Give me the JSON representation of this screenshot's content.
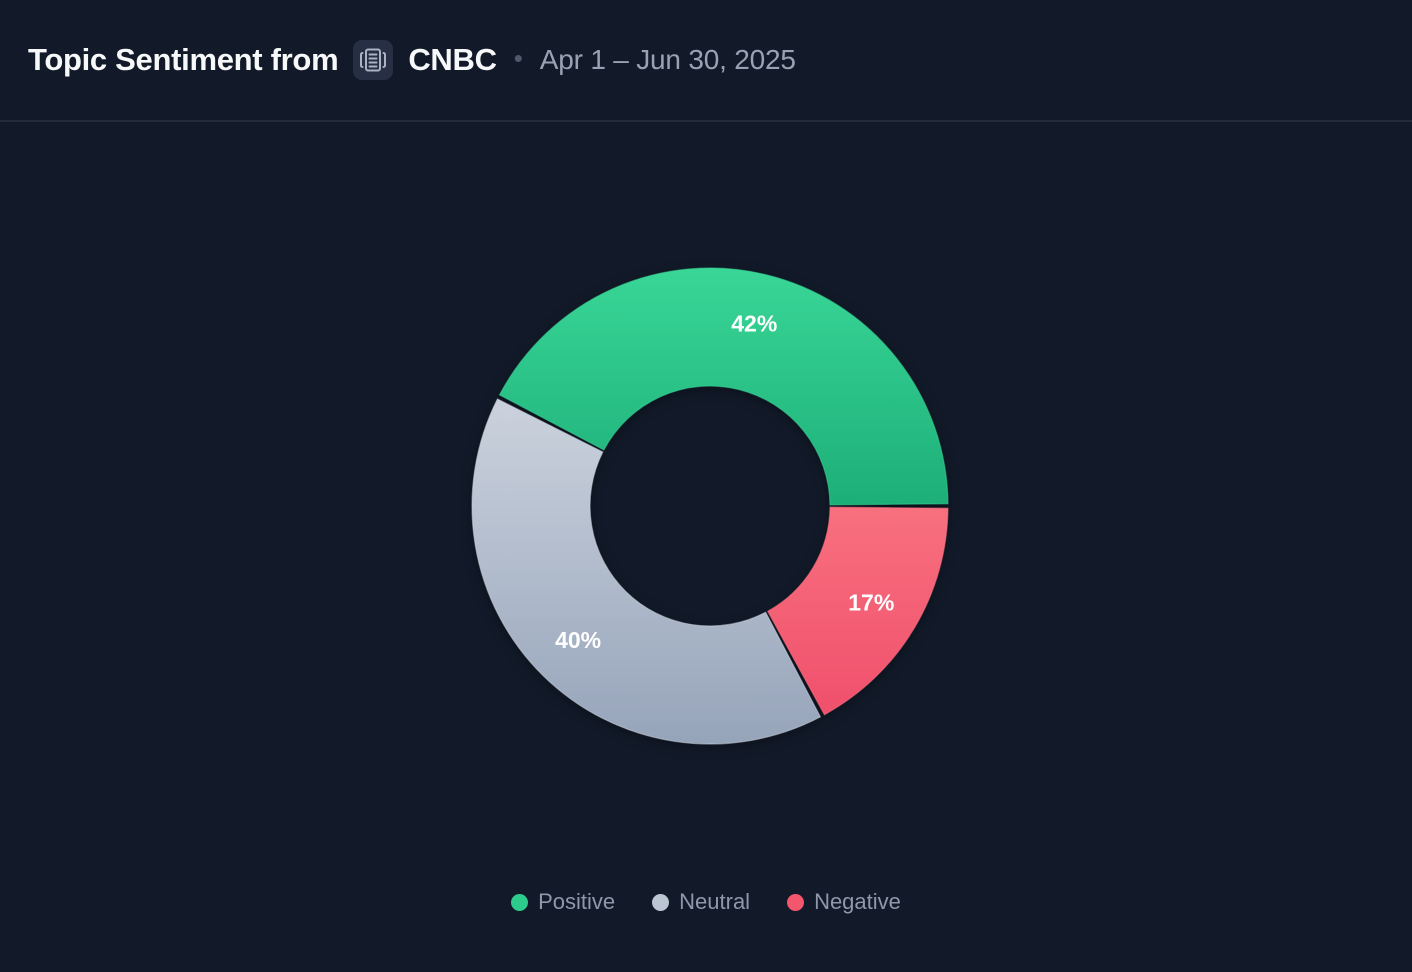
{
  "header": {
    "title": "Topic Sentiment from",
    "source": "CNBC",
    "separator": "•",
    "date_range": "Apr 1 – Jun 30, 2025",
    "icon": "newspaper-icon"
  },
  "colors": {
    "background": "#121a29",
    "divider": "#222b3a",
    "title_text": "#f7f8fa",
    "muted_text": "#99a2b2",
    "legend_text": "#8e98aa",
    "positive": "#2ecc8c",
    "neutral": "#bcc5d2",
    "negative": "#f4566d",
    "slice_label": "#ffffff"
  },
  "chart_data": {
    "type": "donut",
    "categories": [
      "Positive",
      "Neutral",
      "Negative"
    ],
    "values": [
      42,
      40,
      17
    ],
    "unit": "%",
    "series": [
      {
        "name": "Positive",
        "value": 42,
        "label": "42%",
        "color": "#2ecc8c",
        "gradient": [
          "#39d697",
          "#1daf78"
        ]
      },
      {
        "name": "Neutral",
        "value": 40,
        "label": "40%",
        "color": "#bcc5d2",
        "gradient": [
          "#cbd2dd",
          "#96a4ba"
        ]
      },
      {
        "name": "Negative",
        "value": 17,
        "label": "17%",
        "color": "#f4566d",
        "gradient": [
          "#f8707f",
          "#f0506c"
        ]
      }
    ],
    "start_angle_deg": 0,
    "direction": "counterclockwise",
    "inner_radius_ratio": 0.505,
    "grid": false,
    "legend_position": "bottom",
    "legend": [
      "Positive",
      "Neutral",
      "Negative"
    ]
  }
}
